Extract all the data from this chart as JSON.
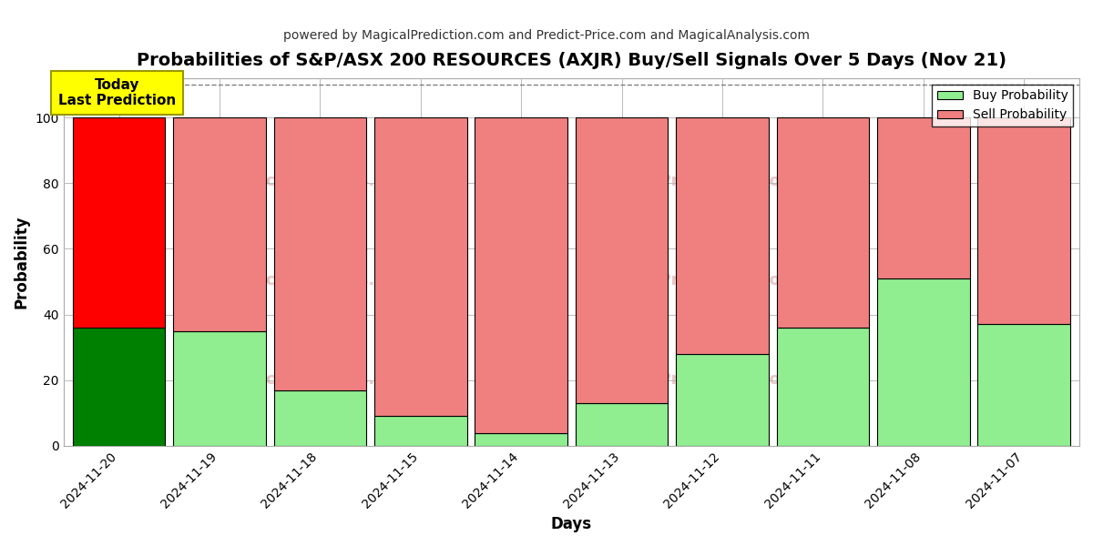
{
  "title": "Probabilities of S&P/ASX 200 RESOURCES (AXJR) Buy/Sell Signals Over 5 Days (Nov 21)",
  "subtitle": "powered by MagicalPrediction.com and Predict-Price.com and MagicalAnalysis.com",
  "xlabel": "Days",
  "ylabel": "Probability",
  "categories": [
    "2024-11-20",
    "2024-11-19",
    "2024-11-18",
    "2024-11-15",
    "2024-11-14",
    "2024-11-13",
    "2024-11-12",
    "2024-11-11",
    "2024-11-08",
    "2024-11-07"
  ],
  "buy_values": [
    36,
    35,
    17,
    9,
    4,
    13,
    28,
    36,
    51,
    37
  ],
  "sell_values": [
    64,
    65,
    83,
    91,
    96,
    87,
    72,
    64,
    49,
    63
  ],
  "today_bar_index": 0,
  "today_buy_color": "#008000",
  "today_sell_color": "#ff0000",
  "buy_color": "#90ee90",
  "sell_color": "#f08080",
  "today_label_bg": "#ffff00",
  "today_label_text": "Today\nLast Prediction",
  "ylim": [
    0,
    112
  ],
  "yticks": [
    0,
    20,
    40,
    60,
    80,
    100
  ],
  "dashed_line_y": 110,
  "background_color": "#ffffff",
  "grid_color": "#bbbbbb",
  "bar_edge_color": "#000000",
  "legend_buy_label": "Buy Probability",
  "legend_sell_label": "Sell Probability",
  "bar_width": 0.92
}
